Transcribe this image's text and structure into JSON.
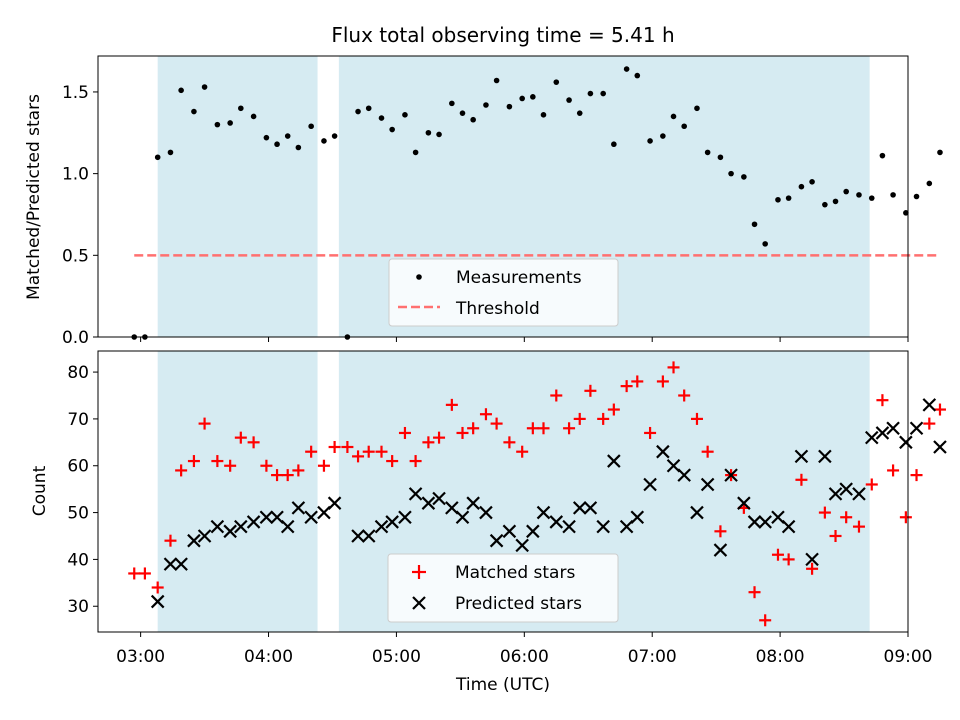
{
  "chart_data": [
    {
      "type": "scatter",
      "title": "Flux total observing time = 5.41 h",
      "ylabel": "Matched/Predicted stars",
      "xlabel": "",
      "ylim": [
        0,
        1.72
      ],
      "yticks": [
        "0.0",
        "0.5",
        "1.0",
        "1.5"
      ],
      "grid": false,
      "legend_position": "bottom-center",
      "shaded_intervals": [
        [
          "03:08",
          "04:23"
        ],
        [
          "04:33",
          "08:42"
        ]
      ],
      "shade_color": "#add8e6",
      "series": [
        {
          "name": "Measurements",
          "marker": "dot",
          "color": "#000000",
          "points": [
            [
              "02:57",
              0.0
            ],
            [
              "03:02",
              0.0
            ],
            [
              "03:08",
              1.1
            ],
            [
              "03:14",
              1.13
            ],
            [
              "03:19",
              1.51
            ],
            [
              "03:25",
              1.38
            ],
            [
              "03:30",
              1.53
            ],
            [
              "03:36",
              1.3
            ],
            [
              "03:42",
              1.31
            ],
            [
              "03:47",
              1.4
            ],
            [
              "03:53",
              1.35
            ],
            [
              "03:59",
              1.22
            ],
            [
              "04:04",
              1.18
            ],
            [
              "04:09",
              1.23
            ],
            [
              "04:14",
              1.16
            ],
            [
              "04:20",
              1.29
            ],
            [
              "04:26",
              1.2
            ],
            [
              "04:31",
              1.23
            ],
            [
              "04:37",
              0.0
            ],
            [
              "04:42",
              1.38
            ],
            [
              "04:47",
              1.4
            ],
            [
              "04:53",
              1.34
            ],
            [
              "04:58",
              1.27
            ],
            [
              "05:04",
              1.36
            ],
            [
              "05:09",
              1.13
            ],
            [
              "05:15",
              1.25
            ],
            [
              "05:20",
              1.24
            ],
            [
              "05:26",
              1.43
            ],
            [
              "05:31",
              1.37
            ],
            [
              "05:36",
              1.33
            ],
            [
              "05:42",
              1.42
            ],
            [
              "05:47",
              1.57
            ],
            [
              "05:53",
              1.41
            ],
            [
              "05:59",
              1.46
            ],
            [
              "06:04",
              1.47
            ],
            [
              "06:09",
              1.36
            ],
            [
              "06:15",
              1.56
            ],
            [
              "06:21",
              1.45
            ],
            [
              "06:26",
              1.37
            ],
            [
              "06:31",
              1.49
            ],
            [
              "06:37",
              1.49
            ],
            [
              "06:42",
              1.18
            ],
            [
              "06:48",
              1.64
            ],
            [
              "06:53",
              1.6
            ],
            [
              "06:59",
              1.2
            ],
            [
              "07:05",
              1.23
            ],
            [
              "07:10",
              1.35
            ],
            [
              "07:15",
              1.29
            ],
            [
              "07:21",
              1.4
            ],
            [
              "07:26",
              1.13
            ],
            [
              "07:32",
              1.1
            ],
            [
              "07:37",
              1.0
            ],
            [
              "07:43",
              0.98
            ],
            [
              "07:48",
              0.69
            ],
            [
              "07:53",
              0.57
            ],
            [
              "07:59",
              0.84
            ],
            [
              "08:04",
              0.85
            ],
            [
              "08:10",
              0.92
            ],
            [
              "08:15",
              0.95
            ],
            [
              "08:21",
              0.81
            ],
            [
              "08:26",
              0.83
            ],
            [
              "08:31",
              0.89
            ],
            [
              "08:37",
              0.87
            ],
            [
              "08:43",
              0.85
            ],
            [
              "08:48",
              1.11
            ],
            [
              "08:53",
              0.87
            ],
            [
              "08:59",
              0.76
            ],
            [
              "09:04",
              0.86
            ],
            [
              "09:10",
              0.94
            ],
            [
              "09:15",
              1.13
            ]
          ]
        },
        {
          "name": "Threshold",
          "marker": "dashed-line",
          "color": "#ff7070",
          "points": [
            [
              "02:57",
              0.5
            ],
            [
              "09:15",
              0.5
            ]
          ]
        }
      ]
    },
    {
      "type": "scatter",
      "title": "",
      "ylabel": "Count",
      "xlabel": "Time (UTC)",
      "ylim": [
        24.5,
        84.5
      ],
      "yticks": [
        "30",
        "40",
        "50",
        "60",
        "70",
        "80"
      ],
      "xticks": [
        "03:00",
        "04:00",
        "05:00",
        "06:00",
        "07:00",
        "08:00",
        "09:00"
      ],
      "xlim": [
        "02:40",
        "09:00"
      ],
      "grid": false,
      "legend_position": "bottom-center",
      "shaded_intervals": [
        [
          "03:08",
          "04:23"
        ],
        [
          "04:33",
          "08:42"
        ]
      ],
      "shade_color": "#add8e6",
      "series": [
        {
          "name": "Matched stars",
          "marker": "plus",
          "color": "#ff0000",
          "points": [
            [
              "02:57",
              37
            ],
            [
              "03:02",
              37
            ],
            [
              "03:08",
              34
            ],
            [
              "03:14",
              44
            ],
            [
              "03:19",
              59
            ],
            [
              "03:25",
              61
            ],
            [
              "03:30",
              69
            ],
            [
              "03:36",
              61
            ],
            [
              "03:42",
              60
            ],
            [
              "03:47",
              66
            ],
            [
              "03:53",
              65
            ],
            [
              "03:59",
              60
            ],
            [
              "04:04",
              58
            ],
            [
              "04:09",
              58
            ],
            [
              "04:14",
              59
            ],
            [
              "04:20",
              63
            ],
            [
              "04:26",
              60
            ],
            [
              "04:31",
              64
            ],
            [
              "04:37",
              64
            ],
            [
              "04:42",
              62
            ],
            [
              "04:47",
              63
            ],
            [
              "04:53",
              63
            ],
            [
              "04:58",
              61
            ],
            [
              "05:04",
              67
            ],
            [
              "05:09",
              61
            ],
            [
              "05:15",
              65
            ],
            [
              "05:20",
              66
            ],
            [
              "05:26",
              73
            ],
            [
              "05:31",
              67
            ],
            [
              "05:36",
              68
            ],
            [
              "05:42",
              71
            ],
            [
              "05:47",
              69
            ],
            [
              "05:53",
              65
            ],
            [
              "05:59",
              63
            ],
            [
              "06:04",
              68
            ],
            [
              "06:09",
              68
            ],
            [
              "06:15",
              75
            ],
            [
              "06:21",
              68
            ],
            [
              "06:26",
              70
            ],
            [
              "06:31",
              76
            ],
            [
              "06:37",
              70
            ],
            [
              "06:42",
              72
            ],
            [
              "06:48",
              77
            ],
            [
              "06:53",
              78
            ],
            [
              "06:59",
              67
            ],
            [
              "07:05",
              78
            ],
            [
              "07:10",
              81
            ],
            [
              "07:15",
              75
            ],
            [
              "07:21",
              70
            ],
            [
              "07:26",
              63
            ],
            [
              "07:32",
              46
            ],
            [
              "07:37",
              58
            ],
            [
              "07:43",
              51
            ],
            [
              "07:48",
              33
            ],
            [
              "07:53",
              27
            ],
            [
              "07:59",
              41
            ],
            [
              "08:04",
              40
            ],
            [
              "08:10",
              57
            ],
            [
              "08:15",
              38
            ],
            [
              "08:21",
              50
            ],
            [
              "08:26",
              45
            ],
            [
              "08:31",
              49
            ],
            [
              "08:37",
              47
            ],
            [
              "08:43",
              56
            ],
            [
              "08:48",
              74
            ],
            [
              "08:53",
              59
            ],
            [
              "08:59",
              49
            ],
            [
              "09:04",
              58
            ],
            [
              "09:10",
              69
            ],
            [
              "09:15",
              72
            ]
          ]
        },
        {
          "name": "Predicted stars",
          "marker": "x",
          "color": "#000000",
          "points": [
            [
              "03:08",
              31
            ],
            [
              "03:14",
              39
            ],
            [
              "03:19",
              39
            ],
            [
              "03:25",
              44
            ],
            [
              "03:30",
              45
            ],
            [
              "03:36",
              47
            ],
            [
              "03:42",
              46
            ],
            [
              "03:47",
              47
            ],
            [
              "03:53",
              48
            ],
            [
              "03:59",
              49
            ],
            [
              "04:04",
              49
            ],
            [
              "04:09",
              47
            ],
            [
              "04:14",
              51
            ],
            [
              "04:20",
              49
            ],
            [
              "04:26",
              50
            ],
            [
              "04:31",
              52
            ],
            [
              "04:42",
              45
            ],
            [
              "04:47",
              45
            ],
            [
              "04:53",
              47
            ],
            [
              "04:58",
              48
            ],
            [
              "05:04",
              49
            ],
            [
              "05:09",
              54
            ],
            [
              "05:15",
              52
            ],
            [
              "05:20",
              53
            ],
            [
              "05:26",
              51
            ],
            [
              "05:31",
              49
            ],
            [
              "05:36",
              52
            ],
            [
              "05:42",
              50
            ],
            [
              "05:47",
              44
            ],
            [
              "05:53",
              46
            ],
            [
              "05:59",
              43
            ],
            [
              "06:04",
              46
            ],
            [
              "06:09",
              50
            ],
            [
              "06:15",
              48
            ],
            [
              "06:21",
              47
            ],
            [
              "06:26",
              51
            ],
            [
              "06:31",
              51
            ],
            [
              "06:37",
              47
            ],
            [
              "06:42",
              61
            ],
            [
              "06:48",
              47
            ],
            [
              "06:53",
              49
            ],
            [
              "06:59",
              56
            ],
            [
              "07:05",
              63
            ],
            [
              "07:10",
              60
            ],
            [
              "07:15",
              58
            ],
            [
              "07:21",
              50
            ],
            [
              "07:26",
              56
            ],
            [
              "07:32",
              42
            ],
            [
              "07:37",
              58
            ],
            [
              "07:43",
              52
            ],
            [
              "07:48",
              48
            ],
            [
              "07:53",
              48
            ],
            [
              "07:59",
              49
            ],
            [
              "08:04",
              47
            ],
            [
              "08:10",
              62
            ],
            [
              "08:15",
              40
            ],
            [
              "08:21",
              62
            ],
            [
              "08:26",
              54
            ],
            [
              "08:31",
              55
            ],
            [
              "08:37",
              54
            ],
            [
              "08:43",
              66
            ],
            [
              "08:48",
              67
            ],
            [
              "08:53",
              68
            ],
            [
              "08:59",
              65
            ],
            [
              "09:04",
              68
            ],
            [
              "09:10",
              73
            ],
            [
              "09:15",
              64
            ]
          ]
        }
      ]
    }
  ]
}
